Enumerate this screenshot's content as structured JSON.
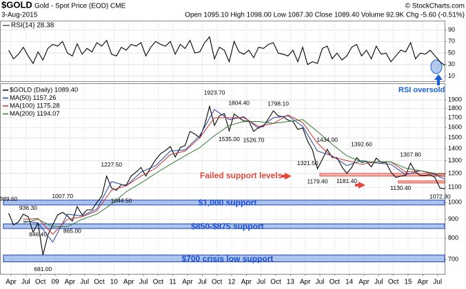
{
  "header": {
    "symbol": "$GOLD",
    "name": "Gold - Spot Price (EOD) CME",
    "copyright": "© StockCharts.com",
    "date": "3-Aug-2015",
    "quote": "Open 1095.10 High 1098.00 Low 1087.30 Close 1089.40 Volume 92.9K Chg -5.60 (-0.51%)"
  },
  "chart_data": [
    {
      "type": "line",
      "title": "RSI(14) 28.38",
      "ylim": [
        0,
        105
      ],
      "yticks": [
        10,
        30,
        50,
        70,
        90
      ],
      "grid": true,
      "annotations": [
        "RSI oversold"
      ],
      "series": [
        {
          "name": "RSI(14)",
          "color": "#000000",
          "x": [
            "2008-03",
            "2008-04",
            "2008-05",
            "2008-06",
            "2008-07",
            "2008-08",
            "2008-09",
            "2008-10",
            "2008-11",
            "2008-12",
            "2009-01",
            "2009-02",
            "2009-03",
            "2009-04",
            "2009-05",
            "2009-06",
            "2009-07",
            "2009-08",
            "2009-09",
            "2009-10",
            "2009-11",
            "2009-12",
            "2010-01",
            "2010-02",
            "2010-03",
            "2010-04",
            "2010-05",
            "2010-06",
            "2010-07",
            "2010-08",
            "2010-09",
            "2010-10",
            "2010-11",
            "2010-12",
            "2011-01",
            "2011-02",
            "2011-03",
            "2011-04",
            "2011-05",
            "2011-06",
            "2011-07",
            "2011-08",
            "2011-09",
            "2011-10",
            "2011-11",
            "2011-12",
            "2012-01",
            "2012-02",
            "2012-03",
            "2012-04",
            "2012-05",
            "2012-06",
            "2012-07",
            "2012-08",
            "2012-09",
            "2012-10",
            "2012-11",
            "2012-12",
            "2013-01",
            "2013-02",
            "2013-03",
            "2013-04",
            "2013-05",
            "2013-06",
            "2013-07",
            "2013-08",
            "2013-09",
            "2013-10",
            "2013-11",
            "2013-12",
            "2014-01",
            "2014-02",
            "2014-03",
            "2014-04",
            "2014-05",
            "2014-06",
            "2014-07",
            "2014-08",
            "2014-09",
            "2014-10",
            "2014-11",
            "2014-12",
            "2015-01",
            "2015-02",
            "2015-03",
            "2015-04",
            "2015-05",
            "2015-06",
            "2015-07",
            "2015-08"
          ],
          "values": [
            55,
            40,
            48,
            60,
            45,
            32,
            52,
            38,
            58,
            65,
            62,
            70,
            50,
            45,
            66,
            48,
            58,
            52,
            68,
            62,
            72,
            48,
            45,
            60,
            55,
            65,
            62,
            68,
            45,
            60,
            70,
            65,
            62,
            70,
            48,
            65,
            58,
            72,
            50,
            52,
            68,
            78,
            40,
            60,
            55,
            35,
            70,
            52,
            48,
            55,
            42,
            60,
            58,
            65,
            68,
            50,
            48,
            45,
            55,
            35,
            60,
            30,
            35,
            32,
            58,
            62,
            40,
            50,
            38,
            45,
            60,
            65,
            45,
            55,
            40,
            62,
            48,
            50,
            35,
            45,
            55,
            52,
            68,
            40,
            50,
            48,
            55,
            45,
            35,
            28.38
          ]
        }
      ]
    },
    {
      "type": "line",
      "log_scale": true,
      "ylim": [
        640,
        2100
      ],
      "grid": true,
      "yticks": [
        700,
        800,
        900,
        1000,
        1100,
        1200,
        1300,
        1400,
        1500,
        1600,
        1700,
        1800,
        1900
      ],
      "xticks": [
        {
          "value": "2008-04",
          "label": "Apr"
        },
        {
          "value": "2008-07",
          "label": "Jul"
        },
        {
          "value": "2008-10",
          "label": "Oct"
        },
        {
          "value": "2009-01",
          "label": "09"
        },
        {
          "value": "2009-04",
          "label": "Apr"
        },
        {
          "value": "2009-07",
          "label": "Jul"
        },
        {
          "value": "2009-10",
          "label": "Oct"
        },
        {
          "value": "2010-01",
          "label": "10"
        },
        {
          "value": "2010-04",
          "label": "Apr"
        },
        {
          "value": "2010-07",
          "label": "Jul"
        },
        {
          "value": "2010-10",
          "label": "Oct"
        },
        {
          "value": "2011-01",
          "label": "11"
        },
        {
          "value": "2011-04",
          "label": "Apr"
        },
        {
          "value": "2011-07",
          "label": "Jul"
        },
        {
          "value": "2011-10",
          "label": "Oct"
        },
        {
          "value": "2012-01",
          "label": "12"
        },
        {
          "value": "2012-04",
          "label": "Apr"
        },
        {
          "value": "2012-07",
          "label": "Jul"
        },
        {
          "value": "2012-10",
          "label": "Oct"
        },
        {
          "value": "2013-01",
          "label": "13"
        },
        {
          "value": "2013-04",
          "label": "Apr"
        },
        {
          "value": "2013-07",
          "label": "Jul"
        },
        {
          "value": "2013-10",
          "label": "Oct"
        },
        {
          "value": "2014-01",
          "label": "14"
        },
        {
          "value": "2014-04",
          "label": "Apr"
        },
        {
          "value": "2014-07",
          "label": "Jul"
        },
        {
          "value": "2014-10",
          "label": "Oct"
        },
        {
          "value": "2015-01",
          "label": "15"
        },
        {
          "value": "2015-04",
          "label": "Apr"
        },
        {
          "value": "2015-07",
          "label": "Jul"
        }
      ],
      "series": [
        {
          "name": "$GOLD (Daily) 1089.40",
          "color": "#000000",
          "x": [
            "2008-03",
            "2008-04",
            "2008-05",
            "2008-06",
            "2008-07",
            "2008-08",
            "2008-09",
            "2008-10",
            "2008-11",
            "2008-12",
            "2009-01",
            "2009-02",
            "2009-03",
            "2009-04",
            "2009-05",
            "2009-06",
            "2009-07",
            "2009-08",
            "2009-09",
            "2009-10",
            "2009-11",
            "2009-12",
            "2010-01",
            "2010-02",
            "2010-03",
            "2010-04",
            "2010-05",
            "2010-06",
            "2010-07",
            "2010-08",
            "2010-09",
            "2010-10",
            "2010-11",
            "2010-12",
            "2011-01",
            "2011-02",
            "2011-03",
            "2011-04",
            "2011-05",
            "2011-06",
            "2011-07",
            "2011-08",
            "2011-09",
            "2011-10",
            "2011-11",
            "2011-12",
            "2012-01",
            "2012-02",
            "2012-03",
            "2012-04",
            "2012-05",
            "2012-06",
            "2012-07",
            "2012-08",
            "2012-09",
            "2012-10",
            "2012-11",
            "2012-12",
            "2013-01",
            "2013-02",
            "2013-03",
            "2013-04",
            "2013-05",
            "2013-06",
            "2013-07",
            "2013-08",
            "2013-09",
            "2013-10",
            "2013-11",
            "2013-12",
            "2014-01",
            "2014-02",
            "2014-03",
            "2014-04",
            "2014-05",
            "2014-06",
            "2014-07",
            "2014-08",
            "2014-09",
            "2014-10",
            "2014-11",
            "2014-12",
            "2015-01",
            "2015-02",
            "2015-03",
            "2015-04",
            "2015-05",
            "2015-06",
            "2015-07",
            "2015-08"
          ],
          "values": [
            935,
            870,
            885,
            930,
            915,
            830,
            880,
            720,
            815,
            870,
            925,
            940,
            920,
            890,
            975,
            925,
            955,
            955,
            1000,
            1040,
            1180,
            1095,
            1080,
            1118,
            1115,
            1180,
            1210,
            1245,
            1180,
            1245,
            1307,
            1357,
            1385,
            1420,
            1330,
            1410,
            1430,
            1560,
            1535,
            1500,
            1625,
            1825,
            1620,
            1720,
            1745,
            1565,
            1740,
            1700,
            1665,
            1665,
            1560,
            1600,
            1610,
            1690,
            1775,
            1720,
            1710,
            1675,
            1660,
            1580,
            1595,
            1470,
            1390,
            1235,
            1310,
            1395,
            1325,
            1325,
            1250,
            1200,
            1245,
            1325,
            1285,
            1295,
            1250,
            1320,
            1285,
            1285,
            1210,
            1170,
            1180,
            1185,
            1280,
            1210,
            1185,
            1185,
            1190,
            1170,
            1095,
            1089.4
          ]
        },
        {
          "name": "MA(50) 1157.26",
          "color": "#1f3f9f",
          "x": [
            "2008-06",
            "2008-09",
            "2008-12",
            "2009-03",
            "2009-06",
            "2009-09",
            "2009-12",
            "2010-03",
            "2010-06",
            "2010-09",
            "2010-12",
            "2011-03",
            "2011-06",
            "2011-09",
            "2011-12",
            "2012-03",
            "2012-06",
            "2012-09",
            "2012-12",
            "2013-03",
            "2013-06",
            "2013-09",
            "2013-12",
            "2014-03",
            "2014-06",
            "2014-09",
            "2014-12",
            "2015-03",
            "2015-06",
            "2015-08"
          ],
          "values": [
            890,
            880,
            780,
            930,
            920,
            960,
            1140,
            1110,
            1210,
            1260,
            1380,
            1390,
            1520,
            1790,
            1680,
            1710,
            1590,
            1700,
            1720,
            1610,
            1380,
            1340,
            1260,
            1300,
            1280,
            1270,
            1190,
            1220,
            1190,
            1157.26
          ]
        },
        {
          "name": "MA(100) 1175.28",
          "color": "#c0302f",
          "x": [
            "2008-06",
            "2008-09",
            "2008-12",
            "2009-03",
            "2009-06",
            "2009-09",
            "2009-12",
            "2010-03",
            "2010-06",
            "2010-09",
            "2010-12",
            "2011-03",
            "2011-06",
            "2011-09",
            "2011-12",
            "2012-03",
            "2012-06",
            "2012-09",
            "2012-12",
            "2013-03",
            "2013-06",
            "2013-09",
            "2013-12",
            "2014-03",
            "2014-06",
            "2014-09",
            "2014-12",
            "2015-03",
            "2015-06",
            "2015-08"
          ],
          "values": [
            900,
            905,
            820,
            900,
            915,
            950,
            1080,
            1110,
            1180,
            1240,
            1350,
            1380,
            1500,
            1700,
            1700,
            1700,
            1610,
            1640,
            1730,
            1650,
            1450,
            1330,
            1300,
            1270,
            1290,
            1290,
            1210,
            1220,
            1195,
            1175.28
          ]
        },
        {
          "name": "MA(200) 1194.07",
          "color": "#2d7a2d",
          "x": [
            "2008-06",
            "2008-09",
            "2008-12",
            "2009-03",
            "2009-06",
            "2009-09",
            "2009-12",
            "2010-03",
            "2010-06",
            "2010-09",
            "2010-12",
            "2011-03",
            "2011-06",
            "2011-09",
            "2011-12",
            "2012-03",
            "2012-06",
            "2012-09",
            "2012-12",
            "2013-03",
            "2013-06",
            "2013-09",
            "2013-12",
            "2014-03",
            "2014-06",
            "2014-09",
            "2014-12",
            "2015-03",
            "2015-06",
            "2015-08"
          ],
          "values": [
            880,
            900,
            860,
            860,
            900,
            930,
            990,
            1070,
            1130,
            1200,
            1270,
            1340,
            1410,
            1520,
            1620,
            1660,
            1660,
            1640,
            1660,
            1680,
            1560,
            1440,
            1340,
            1290,
            1290,
            1290,
            1240,
            1220,
            1200,
            1194.07
          ]
        }
      ],
      "price_labels": [
        {
          "value": 989.6,
          "label": "989.60",
          "x": "2008-03"
        },
        {
          "value": 936.3,
          "label": "936.30",
          "x": "2008-07"
        },
        {
          "value": 846.4,
          "label": "846.40",
          "x": "2008-09"
        },
        {
          "value": 681,
          "label": "681.00",
          "x": "2008-10"
        },
        {
          "value": 1007.7,
          "label": "1007.70",
          "x": "2009-02"
        },
        {
          "value": 865,
          "label": "865.00",
          "x": "2009-04"
        },
        {
          "value": 1227.5,
          "label": "1227.50",
          "x": "2009-12"
        },
        {
          "value": 1044.5,
          "label": "1044.50",
          "x": "2010-02"
        },
        {
          "value": 1923.7,
          "label": "1923.70",
          "x": "2011-09"
        },
        {
          "value": 1535,
          "label": "1535.00",
          "x": "2011-12"
        },
        {
          "value": 1804.4,
          "label": "1804.40",
          "x": "2012-02"
        },
        {
          "value": 1526.7,
          "label": "1526.70",
          "x": "2012-05"
        },
        {
          "value": 1798.1,
          "label": "1798.10",
          "x": "2012-10"
        },
        {
          "value": 1321.5,
          "label": "1321.50",
          "x": "2013-04"
        },
        {
          "value": 1179.4,
          "label": "1179.40",
          "x": "2013-06"
        },
        {
          "value": 1434,
          "label": "1434.00",
          "x": "2013-08"
        },
        {
          "value": 1181.4,
          "label": "1181.40",
          "x": "2013-12"
        },
        {
          "value": 1392.6,
          "label": "1392.60",
          "x": "2014-03"
        },
        {
          "value": 1130.4,
          "label": "1130.40",
          "x": "2014-11"
        },
        {
          "value": 1307.8,
          "label": "1307.80",
          "x": "2015-01"
        },
        {
          "value": 1072.3,
          "label": "1072.30",
          "x": "2015-07"
        }
      ],
      "support_bands": [
        {
          "label": "$1,000 support",
          "range": [
            985,
            1015
          ]
        },
        {
          "label": "$850-$875 support",
          "range": [
            850,
            875
          ]
        },
        {
          "label": "$700 crisis low support",
          "range": [
            690,
            720
          ]
        }
      ],
      "failed_bands": [
        {
          "range": [
            1180,
            1200
          ],
          "from": "2013-07",
          "to": "2015-08"
        },
        {
          "range": [
            1130,
            1145
          ],
          "from": "2014-11",
          "to": "2015-08"
        }
      ],
      "annotations": [
        "Failed support levels"
      ]
    }
  ]
}
